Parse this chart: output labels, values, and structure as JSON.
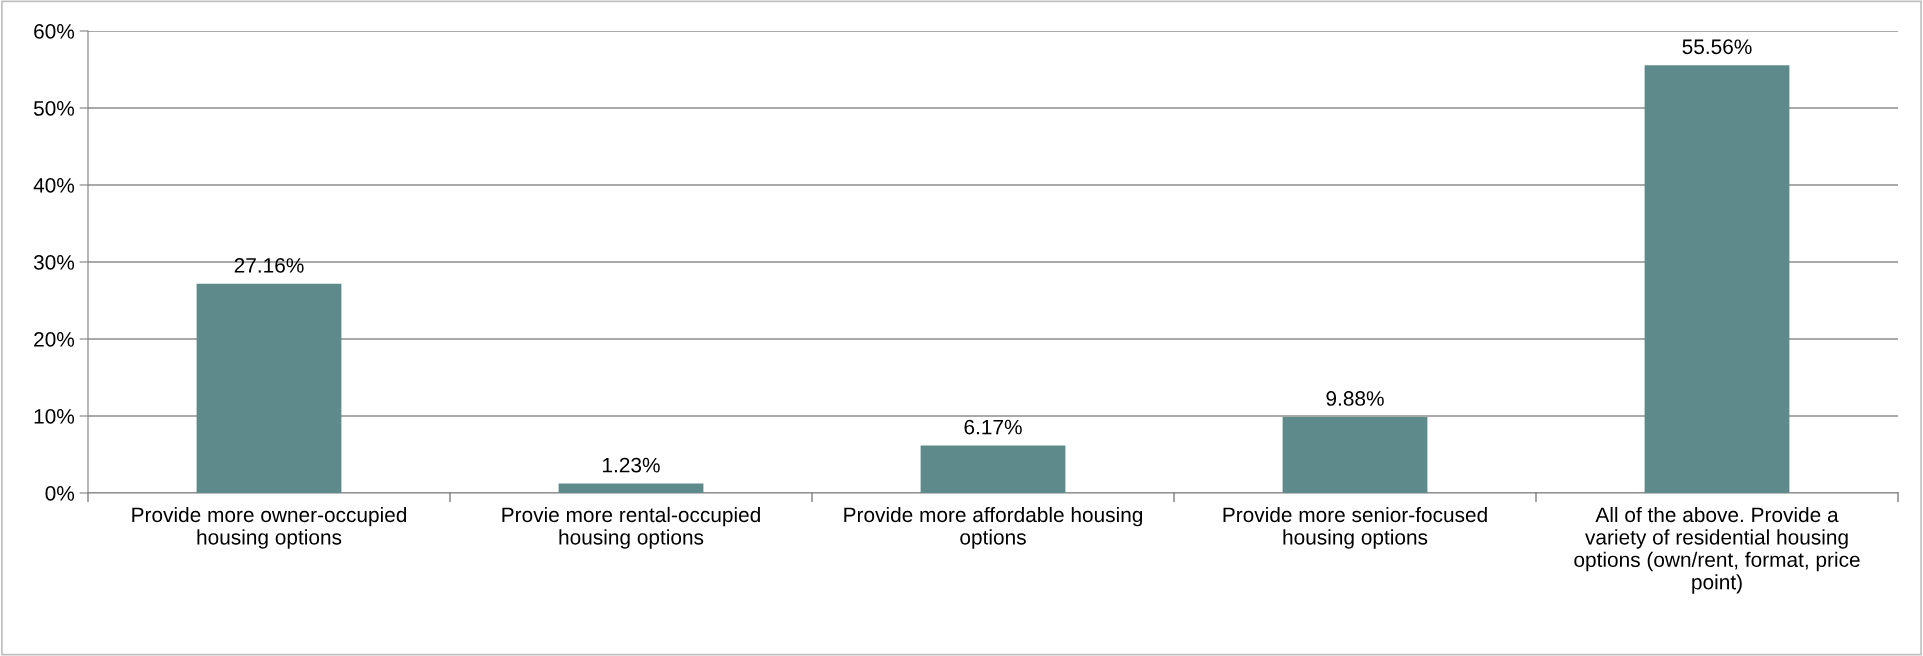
{
  "chart_data": {
    "type": "bar",
    "categories": [
      "Provide more owner-occupied\nhousing options",
      "Provie more rental-occupied\nhousing options",
      "Provide more affordable housing\noptions",
      "Provide more senior-focused\nhousing options",
      "All of the above. Provide a\nvariety of residential housing\noptions (own/rent, format, price\npoint)"
    ],
    "values": [
      27.16,
      1.23,
      6.17,
      9.88,
      55.56
    ],
    "value_labels": [
      "27.16%",
      "1.23%",
      "6.17%",
      "9.88%",
      "55.56%"
    ],
    "color": "#5f8a8b",
    "ylim": [
      0,
      60
    ],
    "yticks": [
      {
        "value": 0,
        "label": "0%"
      },
      {
        "value": 10,
        "label": "10%"
      },
      {
        "value": 20,
        "label": "20%"
      },
      {
        "value": 30,
        "label": "30%"
      },
      {
        "value": 40,
        "label": "40%"
      },
      {
        "value": 50,
        "label": "50%"
      },
      {
        "value": 60,
        "label": "60%"
      }
    ],
    "grid": "y",
    "legend": false
  }
}
